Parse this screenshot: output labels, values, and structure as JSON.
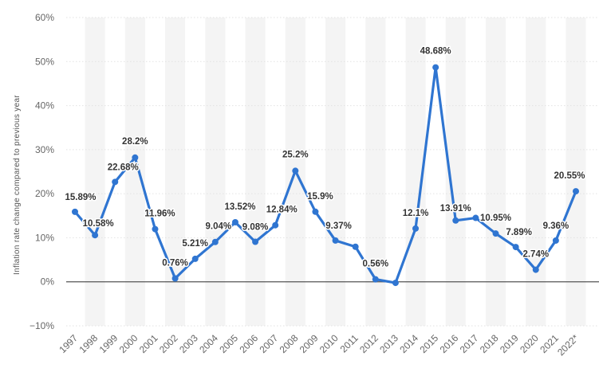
{
  "chart_data": {
    "type": "line",
    "title": "",
    "xlabel": "",
    "ylabel": "Inflation rate change compared to previous year",
    "ylim": [
      -10,
      60
    ],
    "yticks": [
      -10,
      0,
      10,
      20,
      30,
      40,
      50,
      60
    ],
    "ytick_labels": [
      "−10%",
      "0%",
      "10%",
      "20%",
      "30%",
      "40%",
      "50%",
      "60%"
    ],
    "categories": [
      "1997",
      "1998",
      "1999",
      "2000",
      "2001",
      "2002",
      "2003",
      "2004",
      "2005",
      "2006",
      "2007",
      "2008",
      "2009",
      "2010",
      "2011",
      "2012",
      "2013",
      "2014",
      "2015",
      "2016",
      "2017",
      "2018",
      "2019",
      "2020",
      "2021",
      "2022*"
    ],
    "series": [
      {
        "name": "Inflation rate",
        "color": "#2f75d1",
        "values": [
          15.89,
          10.58,
          22.68,
          28.2,
          11.96,
          0.76,
          5.21,
          9.04,
          13.52,
          9.08,
          12.84,
          25.2,
          15.9,
          9.37,
          7.95,
          0.56,
          -0.25,
          12.1,
          48.68,
          13.91,
          14.5,
          10.95,
          7.89,
          2.74,
          9.36,
          20.55
        ],
        "labels": [
          "15.89%",
          "10.58%",
          "22.68%",
          "28.2%",
          "11.96%",
          "0.76%",
          "5.21%",
          "9.04%",
          "13.52%",
          "9.08%",
          "12.84%",
          "25.2%",
          "15.9%",
          "9.37%",
          "",
          "0.56%",
          "",
          "12.1%",
          "48.68%",
          "13.91%",
          "",
          "10.95%",
          "7.89%",
          "2.74%",
          "9.36%",
          "20.55%"
        ]
      }
    ],
    "grid": true,
    "legend": "none"
  }
}
